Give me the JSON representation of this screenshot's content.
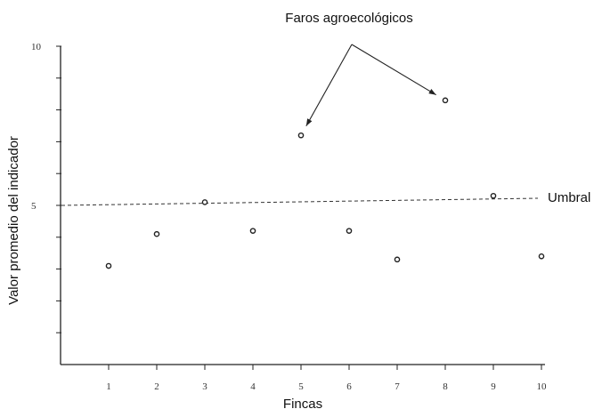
{
  "chart_data": {
    "type": "scatter",
    "title": "Faros agroecológicos",
    "xlabel": "Fincas",
    "ylabel": "Valor promedio del indicador",
    "x": [
      1,
      2,
      3,
      4,
      5,
      6,
      7,
      8,
      9,
      10
    ],
    "y": [
      3.1,
      4.1,
      5.1,
      4.2,
      7.2,
      4.2,
      3.3,
      8.3,
      5.3,
      3.4
    ],
    "xlim": [
      0,
      10
    ],
    "ylim": [
      0,
      10
    ],
    "x_ticks": [
      "1",
      "2",
      "3",
      "4",
      "5",
      "6",
      "7",
      "8",
      "9",
      "10"
    ],
    "y_tick_labels": [
      {
        "value": 5,
        "label": "5"
      },
      {
        "value": 10,
        "label": "10"
      }
    ],
    "y_minor_ticks": [
      1,
      2,
      3,
      4,
      5,
      6,
      7,
      8,
      9,
      10
    ],
    "threshold": {
      "value": 5,
      "label": "Umbral"
    },
    "annotation": {
      "text": "Faros agroecológicos",
      "points_to_x": [
        5,
        8
      ]
    },
    "grid": false,
    "legend": "none"
  }
}
